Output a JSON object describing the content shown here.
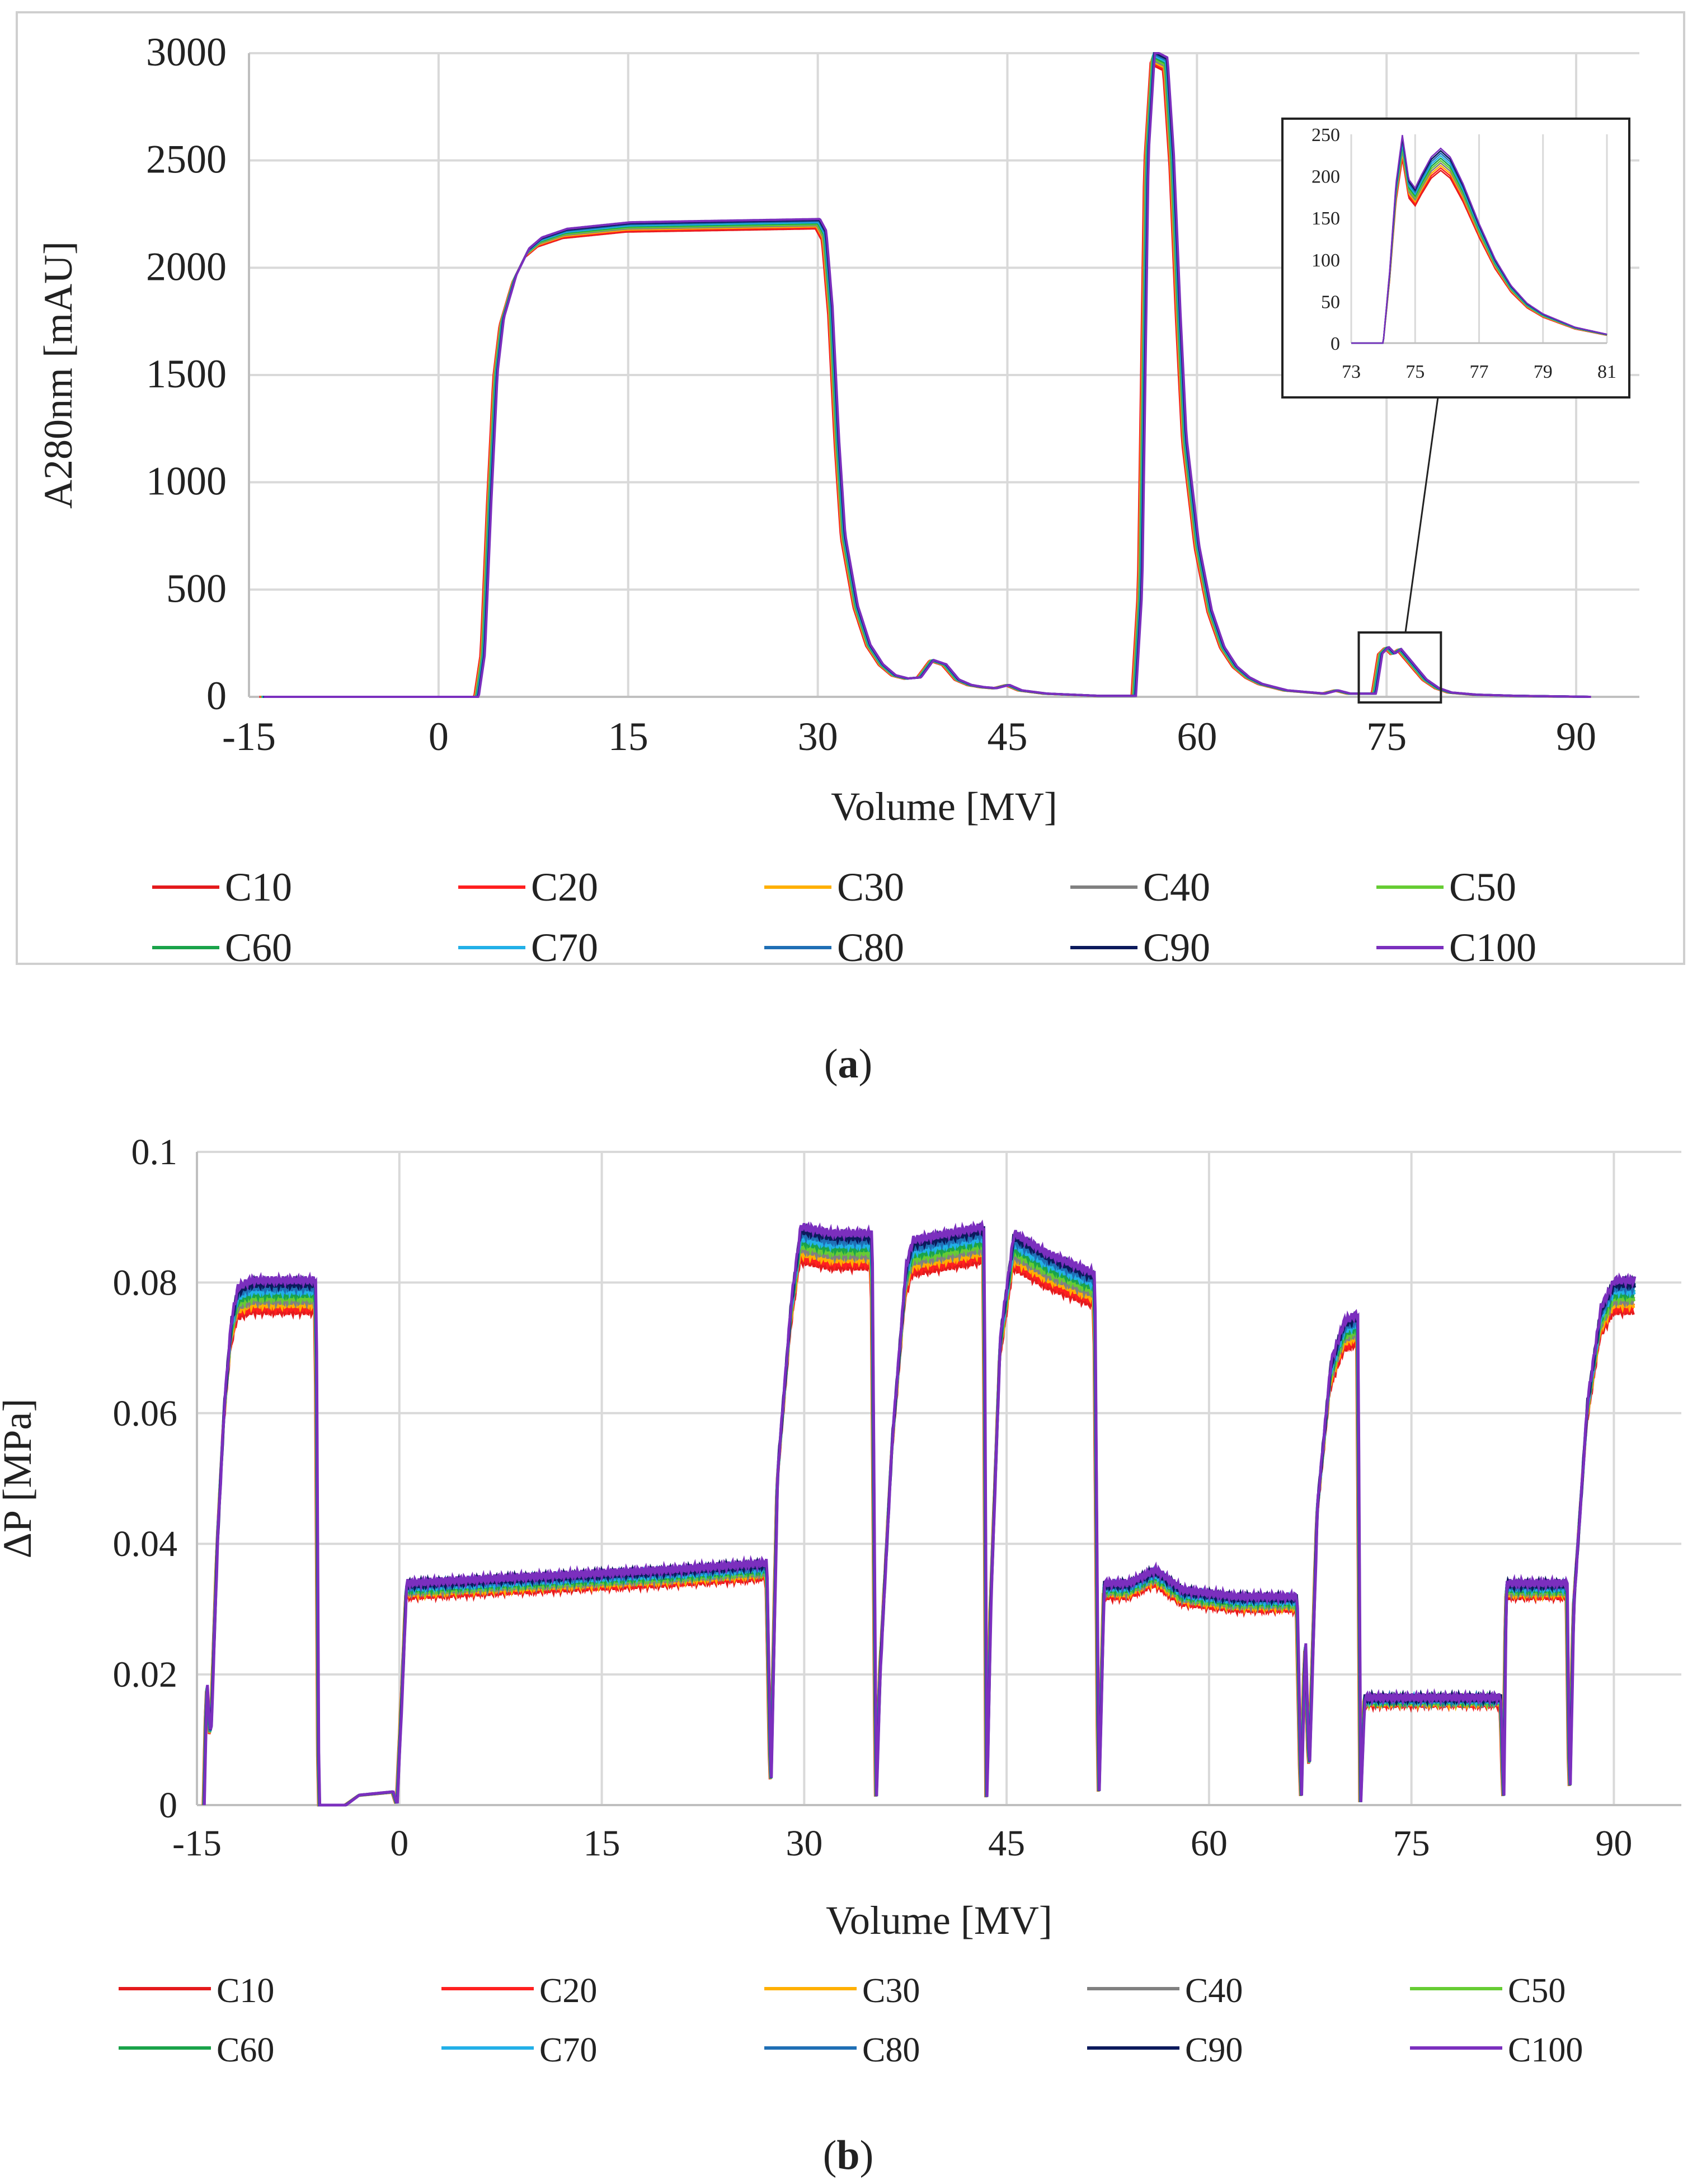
{
  "figure": {
    "panel_a_label": "a",
    "panel_b_label": "b",
    "series_names": [
      "C10",
      "C20",
      "C30",
      "C40",
      "C50",
      "C60",
      "C70",
      "C80",
      "C90",
      "C100"
    ],
    "series_colors": [
      "#e41a1c",
      "#ff2020",
      "#ffb000",
      "#808080",
      "#66cc33",
      "#1aa34a",
      "#22b0e8",
      "#1f6fb5",
      "#0b1a5c",
      "#7b2fbe"
    ]
  },
  "chart_data": [
    {
      "id": "a",
      "type": "line",
      "title": "",
      "xlabel": "Volume [MV]",
      "ylabel": "A280nm [mAU]",
      "xlim": [
        -15,
        95
      ],
      "ylim": [
        0,
        3000
      ],
      "xticks": [
        -15,
        0,
        15,
        30,
        45,
        60,
        75,
        90
      ],
      "yticks": [
        0,
        500,
        1000,
        1500,
        2000,
        2500,
        3000
      ],
      "legend": "bottom",
      "series_names": [
        "C10",
        "C20",
        "C30",
        "C40",
        "C50",
        "C60",
        "C70",
        "C80",
        "C90",
        "C100"
      ],
      "profile": [
        [
          -14,
          0
        ],
        [
          3,
          0
        ],
        [
          3.5,
          200
        ],
        [
          4,
          900
        ],
        [
          4.5,
          1500
        ],
        [
          5,
          1750
        ],
        [
          6,
          1950
        ],
        [
          7,
          2070
        ],
        [
          8,
          2120
        ],
        [
          10,
          2160
        ],
        [
          15,
          2190
        ],
        [
          20,
          2195
        ],
        [
          25,
          2200
        ],
        [
          30,
          2205
        ],
        [
          30.5,
          2150
        ],
        [
          31,
          1800
        ],
        [
          31.5,
          1200
        ],
        [
          32,
          750
        ],
        [
          33,
          420
        ],
        [
          34,
          240
        ],
        [
          35,
          150
        ],
        [
          36,
          100
        ],
        [
          37,
          85
        ],
        [
          38,
          90
        ],
        [
          39,
          170
        ],
        [
          40,
          150
        ],
        [
          41,
          80
        ],
        [
          42,
          55
        ],
        [
          43,
          45
        ],
        [
          44,
          40
        ],
        [
          45,
          55
        ],
        [
          46,
          30
        ],
        [
          48,
          15
        ],
        [
          52,
          5
        ],
        [
          55,
          5
        ],
        [
          55.5,
          500
        ],
        [
          56,
          2500
        ],
        [
          56.5,
          2980
        ],
        [
          57.5,
          2950
        ],
        [
          58,
          2500
        ],
        [
          58.5,
          1800
        ],
        [
          59,
          1200
        ],
        [
          60,
          700
        ],
        [
          61,
          400
        ],
        [
          62,
          230
        ],
        [
          63,
          140
        ],
        [
          64,
          90
        ],
        [
          65,
          60
        ],
        [
          67,
          30
        ],
        [
          69,
          20
        ],
        [
          70,
          15
        ],
        [
          71,
          30
        ],
        [
          72,
          15
        ],
        [
          74,
          15
        ],
        [
          74.5,
          200
        ],
        [
          75,
          230
        ],
        [
          75.5,
          200
        ],
        [
          76,
          220
        ],
        [
          77,
          150
        ],
        [
          78,
          80
        ],
        [
          79,
          40
        ],
        [
          80,
          20
        ],
        [
          82,
          10
        ],
        [
          85,
          5
        ],
        [
          91,
          0
        ]
      ],
      "inset": {
        "xlim": [
          73,
          81
        ],
        "ylim": [
          0,
          250
        ],
        "xticks": [
          73,
          75,
          77,
          79,
          81
        ],
        "yticks": [
          0,
          50,
          100,
          150,
          200,
          250
        ],
        "profile": [
          [
            73,
            0
          ],
          [
            74,
            0
          ],
          [
            74.2,
            80
          ],
          [
            74.4,
            180
          ],
          [
            74.6,
            235
          ],
          [
            74.8,
            185
          ],
          [
            75.0,
            175
          ],
          [
            75.2,
            190
          ],
          [
            75.5,
            210
          ],
          [
            75.8,
            220
          ],
          [
            76.1,
            210
          ],
          [
            76.5,
            180
          ],
          [
            77,
            135
          ],
          [
            77.5,
            95
          ],
          [
            78,
            65
          ],
          [
            78.5,
            45
          ],
          [
            79,
            33
          ],
          [
            80,
            18
          ],
          [
            81,
            10
          ]
        ]
      }
    },
    {
      "id": "b",
      "type": "line",
      "title": "",
      "xlabel": "Volume [MV]",
      "ylabel": "ΔP [MPa]",
      "xlim": [
        -15,
        95
      ],
      "ylim": [
        0,
        0.1
      ],
      "xticks": [
        -15,
        0,
        15,
        30,
        45,
        60,
        75,
        90
      ],
      "ytick_labels": [
        "0",
        "0.02",
        "0.04",
        "0.06",
        "0.08",
        "0.1"
      ],
      "yticks": [
        0,
        0.02,
        0.04,
        0.06,
        0.08,
        0.1
      ],
      "legend": "bottom",
      "series_names": [
        "C10",
        "C20",
        "C30",
        "C40",
        "C50",
        "C60",
        "C70",
        "C80",
        "C90",
        "C100"
      ],
      "profile": [
        [
          -14.5,
          0
        ],
        [
          -14.3,
          0.018
        ],
        [
          -14,
          0.01
        ],
        [
          -13.5,
          0.04
        ],
        [
          -13,
          0.06
        ],
        [
          -12.5,
          0.072
        ],
        [
          -12,
          0.077
        ],
        [
          -11,
          0.078
        ],
        [
          -8,
          0.078
        ],
        [
          -6.2,
          0.078
        ],
        [
          -6,
          0
        ],
        [
          -4,
          0
        ],
        [
          -3,
          0.0015
        ],
        [
          -0.5,
          0.002
        ],
        [
          -0.2,
          0
        ],
        [
          0.2,
          0.018
        ],
        [
          0.5,
          0.033
        ],
        [
          10,
          0.034
        ],
        [
          20,
          0.035
        ],
        [
          27.2,
          0.036
        ],
        [
          27.5,
          0.002
        ],
        [
          28,
          0.05
        ],
        [
          29,
          0.075
        ],
        [
          29.7,
          0.086
        ],
        [
          32,
          0.085
        ],
        [
          35,
          0.085
        ],
        [
          35.3,
          0
        ],
        [
          35.6,
          0.02
        ],
        [
          36.5,
          0.055
        ],
        [
          37.5,
          0.08
        ],
        [
          38,
          0.084
        ],
        [
          43.3,
          0.086
        ],
        [
          43.5,
          0
        ],
        [
          43.8,
          0.03
        ],
        [
          44.5,
          0.07
        ],
        [
          45.5,
          0.085
        ],
        [
          48,
          0.082
        ],
        [
          51.5,
          0.079
        ],
        [
          51.8,
          0
        ],
        [
          52.2,
          0.033
        ],
        [
          54,
          0.033
        ],
        [
          56,
          0.035
        ],
        [
          58,
          0.032
        ],
        [
          62,
          0.031
        ],
        [
          66.5,
          0.031
        ],
        [
          66.8,
          0
        ],
        [
          67.1,
          0.025
        ],
        [
          67.4,
          0.005
        ],
        [
          68,
          0.045
        ],
        [
          69,
          0.066
        ],
        [
          70,
          0.072
        ],
        [
          71,
          0.073
        ],
        [
          71.2,
          0
        ],
        [
          71.5,
          0.016
        ],
        [
          76,
          0.016
        ],
        [
          81.6,
          0.016
        ],
        [
          81.8,
          0
        ],
        [
          82,
          0.033
        ],
        [
          86.5,
          0.033
        ],
        [
          86.7,
          0
        ],
        [
          87,
          0.03
        ],
        [
          88,
          0.06
        ],
        [
          89,
          0.074
        ],
        [
          90,
          0.078
        ],
        [
          91.5,
          0.078
        ]
      ]
    }
  ]
}
